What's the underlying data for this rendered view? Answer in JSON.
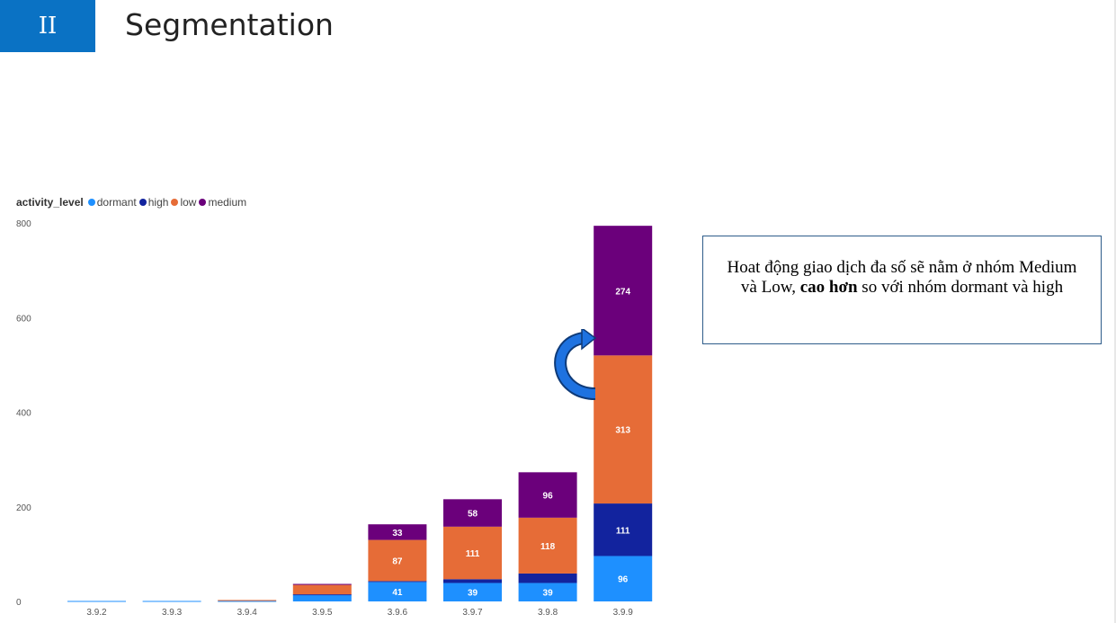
{
  "header": {
    "section_number": "II",
    "title": "Segmentation"
  },
  "legend": {
    "title": "activity_level",
    "items": [
      {
        "label": "dormant",
        "color": "#1e90ff"
      },
      {
        "label": "high",
        "color": "#12239e"
      },
      {
        "label": "low",
        "color": "#e66c37"
      },
      {
        "label": "medium",
        "color": "#6b007b"
      }
    ]
  },
  "callout": {
    "text_before": "Hoat động giao dịch đa số sẽ nằm ở nhóm Medium và Low, ",
    "text_bold": "cao hơn",
    "text_after": " so với nhóm dormant và high"
  },
  "chart_data": {
    "type": "bar",
    "stacked": true,
    "categories": [
      "3.9.2",
      "3.9.3",
      "3.9.4",
      "3.9.5",
      "3.9.6",
      "3.9.7",
      "3.9.8",
      "3.9.9"
    ],
    "series": [
      {
        "name": "dormant",
        "color": "#1e90ff",
        "values": [
          1,
          1,
          1,
          14,
          41,
          39,
          39,
          96
        ],
        "labels": [
          null,
          null,
          null,
          null,
          "41",
          "39",
          "39",
          "96"
        ]
      },
      {
        "name": "high",
        "color": "#12239e",
        "values": [
          0,
          0,
          0,
          1,
          2,
          8,
          20,
          111
        ],
        "labels": [
          null,
          null,
          null,
          null,
          null,
          null,
          null,
          "111"
        ]
      },
      {
        "name": "low",
        "color": "#e66c37",
        "values": [
          0,
          0,
          2,
          20,
          87,
          111,
          118,
          313
        ],
        "labels": [
          null,
          null,
          null,
          null,
          "87",
          "111",
          "118",
          "313"
        ]
      },
      {
        "name": "medium",
        "color": "#6b007b",
        "values": [
          0,
          0,
          0,
          2,
          33,
          58,
          96,
          274
        ],
        "labels": [
          null,
          null,
          null,
          null,
          "33",
          "58",
          "96",
          "274"
        ]
      }
    ],
    "yticks": [
      0,
      200,
      400,
      600,
      800
    ],
    "ylim": [
      0,
      800
    ],
    "grid": false,
    "legend_position": "top-left"
  }
}
